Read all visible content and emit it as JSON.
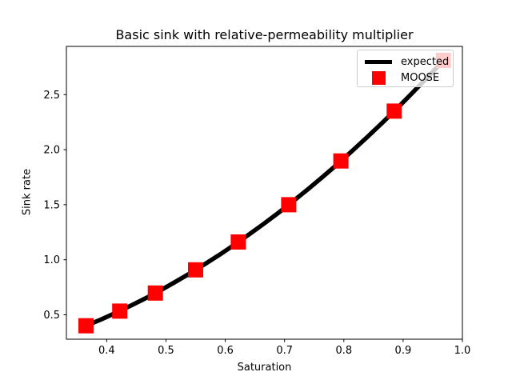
{
  "figure": {
    "title": "Basic sink with relative-permeability multiplier",
    "xlabel": "Saturation",
    "ylabel": "Sink rate"
  },
  "colors": {
    "expected_line": "#000000",
    "moose_marker": "#ff0000",
    "axes": "#000000",
    "legend_border": "#cccccc",
    "background": "#ffffff"
  },
  "chart_data": {
    "type": "line",
    "title": "Basic sink with relative-permeability multiplier",
    "xlabel": "Saturation",
    "ylabel": "Sink rate",
    "xlim": [
      0.332,
      1.0
    ],
    "ylim": [
      0.278,
      2.938
    ],
    "x_ticks": [
      "0.4",
      "0.5",
      "0.6",
      "0.7",
      "0.8",
      "0.9",
      "1.0"
    ],
    "x_tick_values": [
      0.4,
      0.5,
      0.6,
      0.7,
      0.8,
      0.9,
      1.0
    ],
    "y_ticks": [
      "0.5",
      "1.0",
      "1.5",
      "2.0",
      "2.5"
    ],
    "y_tick_values": [
      0.5,
      1.0,
      1.5,
      2.0,
      2.5
    ],
    "grid": false,
    "legend_position": "upper right",
    "series": [
      {
        "name": "expected",
        "type": "line",
        "color": "#000000",
        "linewidth": 5.5,
        "x": [
          0.365,
          0.39,
          0.415,
          0.44,
          0.465,
          0.49,
          0.515,
          0.54,
          0.565,
          0.59,
          0.615,
          0.64,
          0.665,
          0.69,
          0.715,
          0.74,
          0.765,
          0.79,
          0.815,
          0.84,
          0.865,
          0.89,
          0.915,
          0.94,
          0.968
        ],
        "y": [
          0.4,
          0.456,
          0.517,
          0.581,
          0.649,
          0.72,
          0.796,
          0.875,
          0.958,
          1.044,
          1.135,
          1.229,
          1.327,
          1.428,
          1.534,
          1.643,
          1.756,
          1.872,
          1.993,
          2.117,
          2.245,
          2.376,
          2.512,
          2.651,
          2.811
        ]
      },
      {
        "name": "MOOSE",
        "type": "scatter",
        "marker": "square",
        "marker_size": 19,
        "color": "#ff0000",
        "x": [
          0.365,
          0.422,
          0.482,
          0.55,
          0.622,
          0.707,
          0.795,
          0.885,
          0.968
        ],
        "y": [
          0.4,
          0.533,
          0.697,
          0.908,
          1.161,
          1.5,
          1.897,
          2.35,
          2.811
        ]
      }
    ]
  }
}
